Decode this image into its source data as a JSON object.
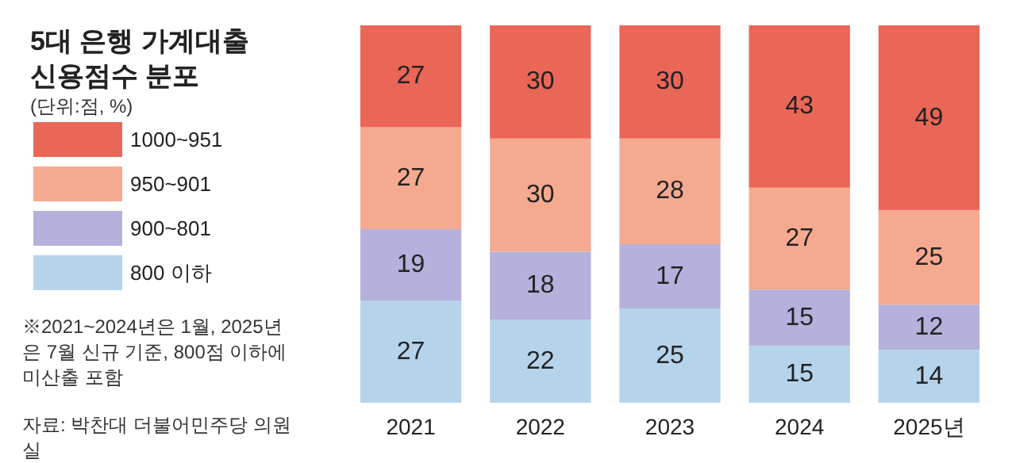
{
  "chart_data": {
    "type": "bar",
    "title": "5대 은행 가계대출 신용점수 분포",
    "subtitle": "(단위:점, %)",
    "categories": [
      "2021",
      "2022",
      "2023",
      "2024",
      "2025년"
    ],
    "stacked": true,
    "data_labels": true,
    "legend": "left",
    "series": [
      {
        "name": "800 이하",
        "color": "#b5d4eb",
        "values": [
          27,
          22,
          25,
          15,
          14
        ]
      },
      {
        "name": "900~801",
        "color": "#b4b1dc",
        "values": [
          19,
          18,
          17,
          15,
          12
        ]
      },
      {
        "name": "950~901",
        "color": "#f5aa8f",
        "values": [
          27,
          30,
          28,
          27,
          25
        ]
      },
      {
        "name": "1000~951",
        "color": "#ea6657",
        "values": [
          27,
          30,
          30,
          43,
          49
        ]
      }
    ],
    "annotations": [
      "※2021~2024년은 1월, 2025년은 7월 신규 기준, 800점 이하에 미산출 포함",
      "자료: 박찬대 더불어민주당 의원실"
    ]
  }
}
